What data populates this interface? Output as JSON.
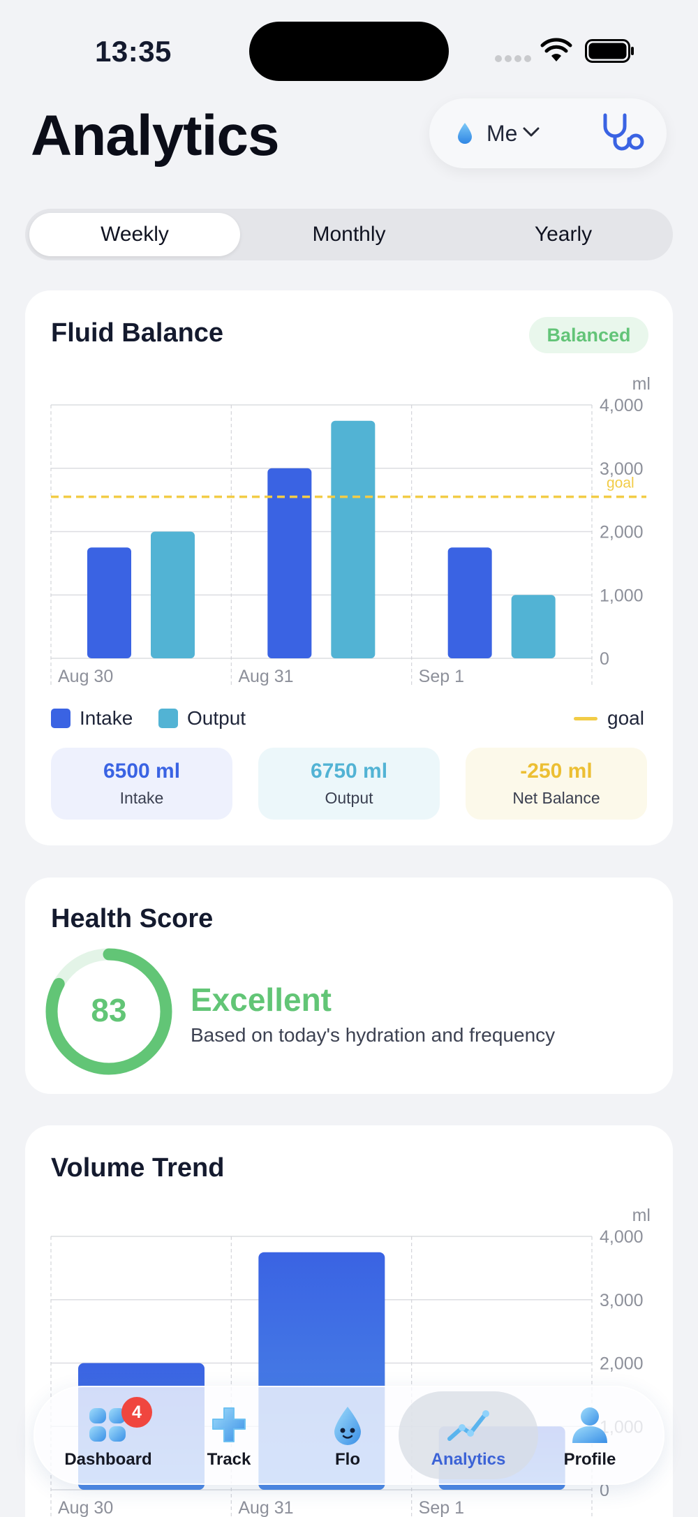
{
  "status_bar": {
    "time": "13:35"
  },
  "header": {
    "title": "Analytics",
    "profile_label": "Me"
  },
  "periods": {
    "options": [
      "Weekly",
      "Monthly",
      "Yearly"
    ],
    "selected": "Weekly"
  },
  "fluid_balance": {
    "title": "Fluid Balance",
    "badge": "Balanced",
    "legend": {
      "intake": "Intake",
      "output": "Output",
      "goal": "goal"
    },
    "stats": {
      "intake": {
        "value": "6500 ml",
        "label": "Intake"
      },
      "output": {
        "value": "6750 ml",
        "label": "Output"
      },
      "net": {
        "value": "-250 ml",
        "label": "Net Balance"
      }
    }
  },
  "health_score": {
    "title": "Health Score",
    "score": "83",
    "score_value": 83,
    "rating": "Excellent",
    "description": "Based on today's hydration and frequency"
  },
  "volume_trend": {
    "title": "Volume Trend"
  },
  "chart_data": [
    {
      "type": "bar",
      "title": "Fluid Balance",
      "ylabel": "ml",
      "ylim": [
        0,
        4000
      ],
      "yticks": [
        "0",
        "1,000",
        "2,000",
        "3,000",
        "4,000"
      ],
      "categories": [
        "Aug 30",
        "Aug 31",
        "Sep 1"
      ],
      "series": [
        {
          "name": "Intake",
          "values": [
            1750,
            3000,
            1750
          ],
          "color": "#3a63e3"
        },
        {
          "name": "Output",
          "values": [
            2000,
            3750,
            1000
          ],
          "color": "#52b3d4"
        }
      ],
      "goal": {
        "label": "goal",
        "value": 2550,
        "color": "#f2cc46"
      },
      "grid": true,
      "legend": "bottom"
    },
    {
      "type": "bar",
      "title": "Volume Trend",
      "ylabel": "ml",
      "ylim": [
        0,
        4000
      ],
      "yticks": [
        "0",
        "1,000",
        "2,000",
        "3,000",
        "4,000"
      ],
      "categories": [
        "Aug 30",
        "Aug 31",
        "Sep 1"
      ],
      "values": [
        2000,
        3750,
        1000
      ],
      "color": "#3a63e3",
      "grid": true
    }
  ],
  "tabbar": {
    "items": [
      {
        "label": "Dashboard",
        "icon": "dashboard-icon",
        "badge": "4"
      },
      {
        "label": "Track",
        "icon": "track-icon"
      },
      {
        "label": "Flo",
        "icon": "flo-mascot-icon"
      },
      {
        "label": "Analytics",
        "icon": "analytics-icon",
        "active": true
      },
      {
        "label": "Profile",
        "icon": "profile-icon"
      }
    ]
  }
}
